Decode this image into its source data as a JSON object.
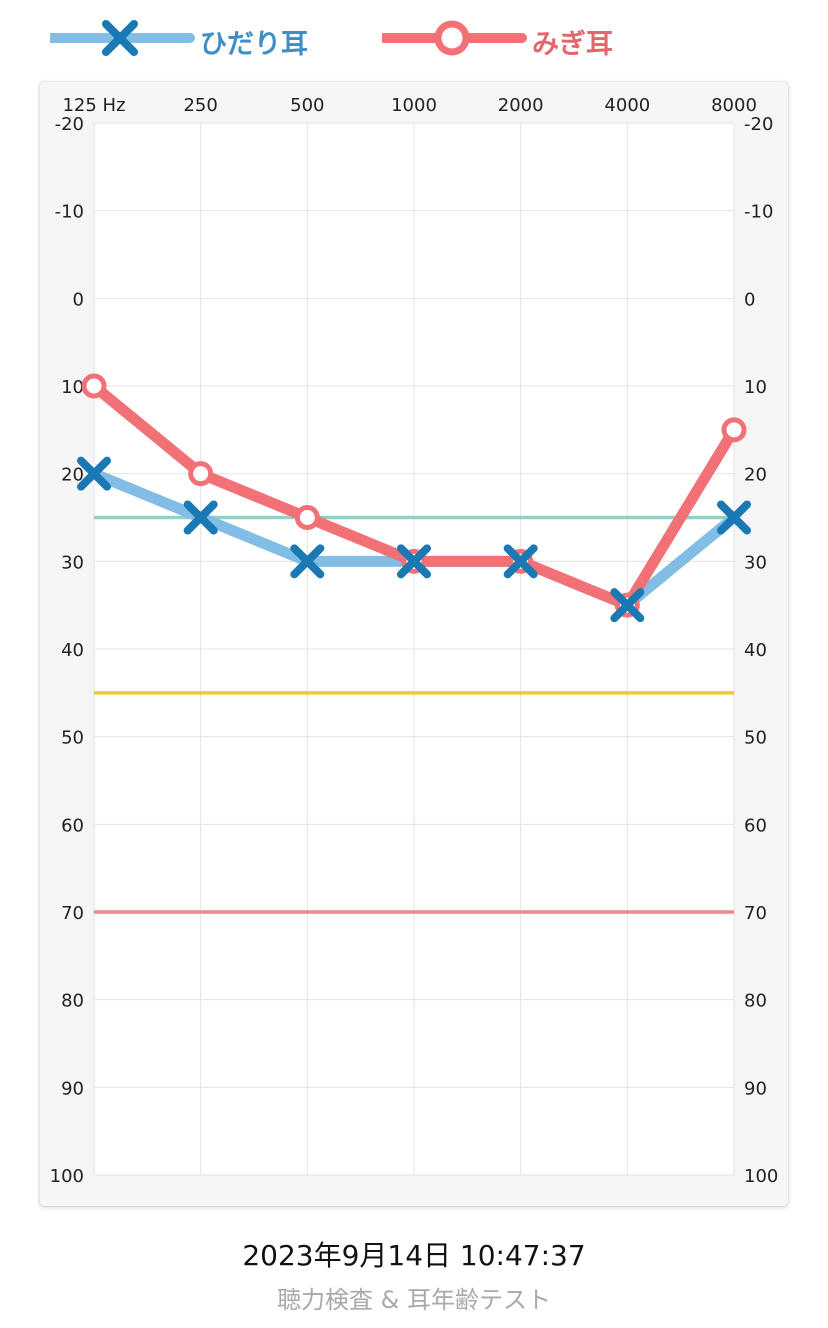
{
  "legend": {
    "left_label": "ひだり耳",
    "right_label": "みぎ耳"
  },
  "chart_data": {
    "type": "line",
    "x": [
      "125 Hz",
      "250",
      "500",
      "1000",
      "2000",
      "4000",
      "8000"
    ],
    "y_ticks": [
      -20,
      -10,
      0,
      10,
      20,
      30,
      40,
      50,
      60,
      70,
      80,
      90,
      100
    ],
    "ylim": [
      -20,
      100
    ],
    "y_inverted": true,
    "grid": true,
    "legend_position": "top",
    "series": [
      {
        "name": "ひだり耳",
        "marker": "x",
        "values": [
          20,
          25,
          30,
          30,
          30,
          35,
          25
        ],
        "line_color": "#82bde6",
        "marker_color": "#1a78b3"
      },
      {
        "name": "みぎ耳",
        "marker": "o",
        "values": [
          10,
          20,
          25,
          30,
          30,
          35,
          15
        ],
        "line_color": "#f27176",
        "marker_color": "#f27176"
      }
    ],
    "reference_lines": [
      {
        "value": 25,
        "color": "#8fd3c7"
      },
      {
        "value": 45,
        "color": "#edc937"
      },
      {
        "value": 70,
        "color": "#f08a8a"
      }
    ]
  },
  "footer": {
    "datetime": "2023年9月14日 10:47:37",
    "app_name": "聴力検査 & 耳年齢テスト"
  }
}
